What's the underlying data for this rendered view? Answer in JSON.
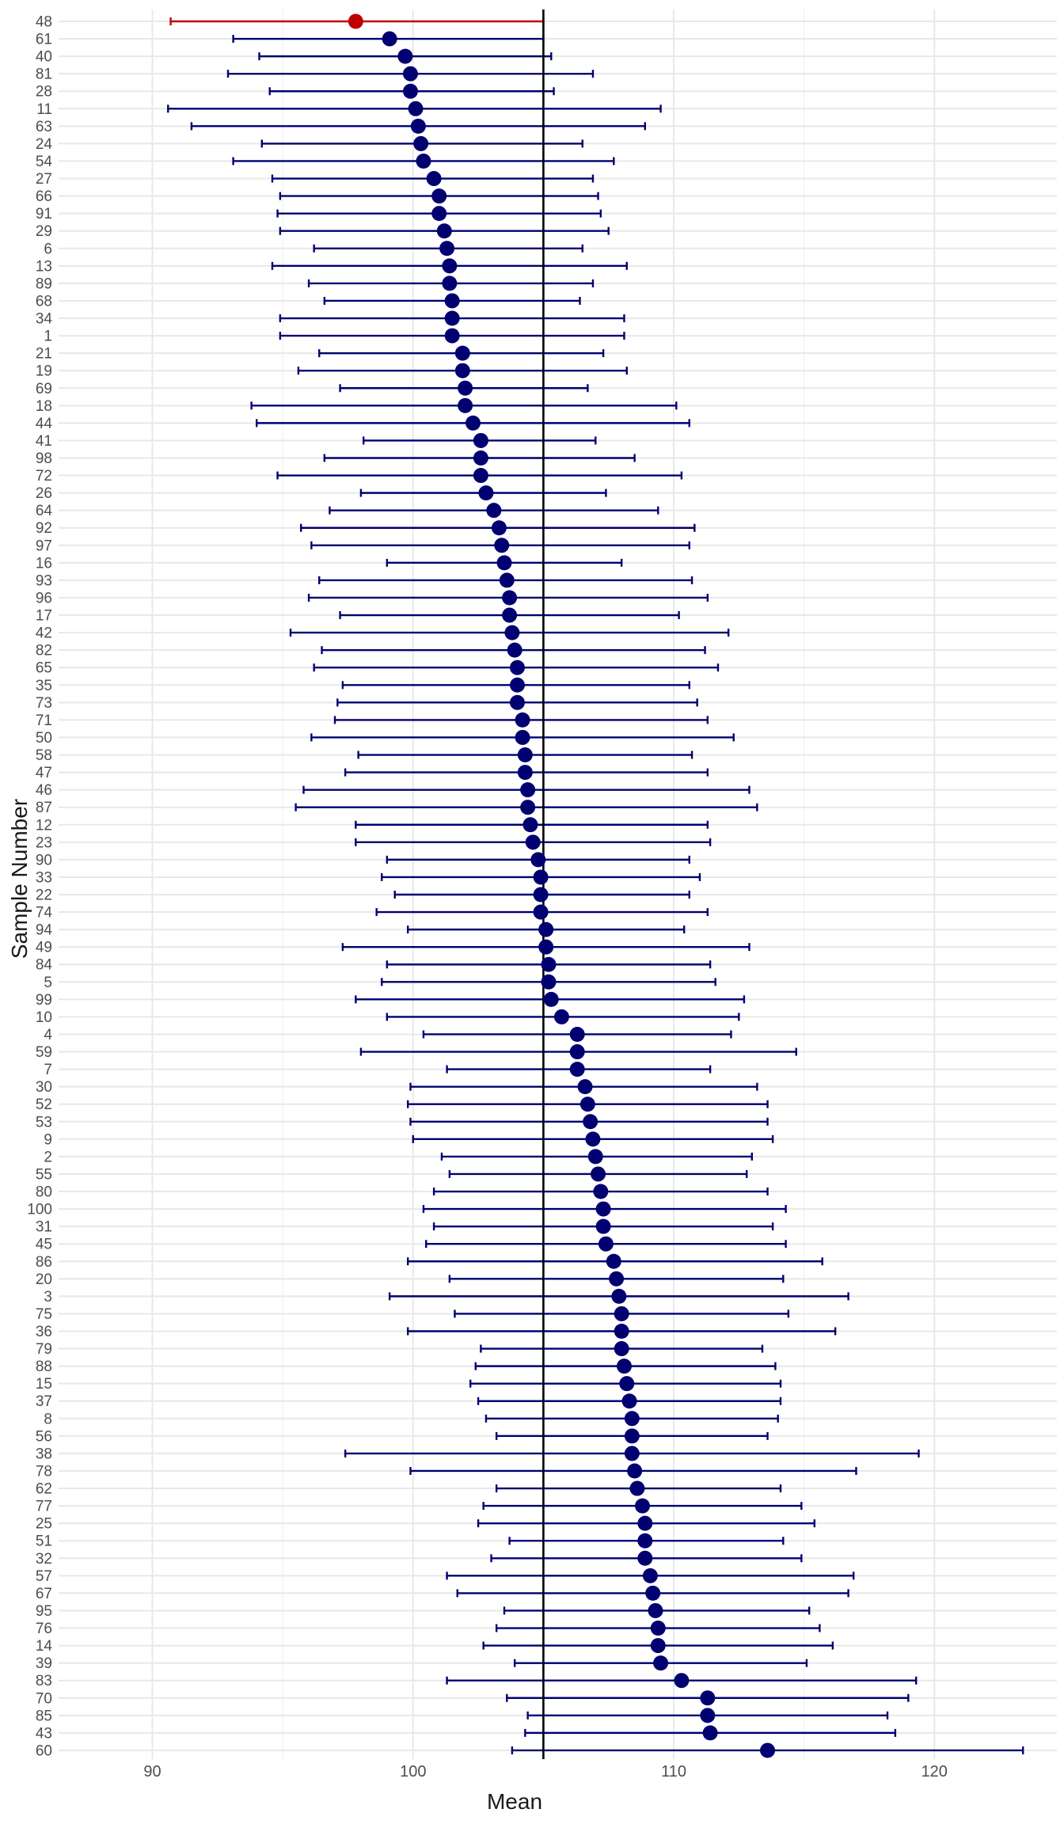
{
  "chart_data": {
    "type": "scatter",
    "subtype": "forest_plot_confidence_intervals",
    "title": "",
    "xlabel": "Mean",
    "ylabel": "Sample Number",
    "xlim": [
      86.4,
      124.7
    ],
    "x_ticks": [
      90,
      100,
      110,
      120
    ],
    "reference_line": 105,
    "grid": true,
    "colors": {
      "contains_true_mean": "#000070",
      "misses_true_mean": "#C00000",
      "reference_line": "#000000",
      "grid": "#E8E8E8"
    },
    "samples": [
      {
        "id": "48",
        "mean": 97.8,
        "lower": 90.7,
        "upper": 105.0,
        "misses": true
      },
      {
        "id": "61",
        "mean": 99.1,
        "lower": 93.1,
        "upper": 105.0
      },
      {
        "id": "40",
        "mean": 99.7,
        "lower": 94.1,
        "upper": 105.3
      },
      {
        "id": "81",
        "mean": 99.9,
        "lower": 92.9,
        "upper": 106.9
      },
      {
        "id": "28",
        "mean": 99.9,
        "lower": 94.5,
        "upper": 105.4
      },
      {
        "id": "11",
        "mean": 100.1,
        "lower": 90.6,
        "upper": 109.5
      },
      {
        "id": "63",
        "mean": 100.2,
        "lower": 91.5,
        "upper": 108.9
      },
      {
        "id": "24",
        "mean": 100.3,
        "lower": 94.2,
        "upper": 106.5
      },
      {
        "id": "54",
        "mean": 100.4,
        "lower": 93.1,
        "upper": 107.7
      },
      {
        "id": "27",
        "mean": 100.8,
        "lower": 94.6,
        "upper": 106.9
      },
      {
        "id": "66",
        "mean": 101.0,
        "lower": 94.9,
        "upper": 107.1
      },
      {
        "id": "91",
        "mean": 101.0,
        "lower": 94.8,
        "upper": 107.2
      },
      {
        "id": "29",
        "mean": 101.2,
        "lower": 94.9,
        "upper": 107.5
      },
      {
        "id": "6",
        "mean": 101.3,
        "lower": 96.2,
        "upper": 106.5
      },
      {
        "id": "13",
        "mean": 101.4,
        "lower": 94.6,
        "upper": 108.2
      },
      {
        "id": "89",
        "mean": 101.4,
        "lower": 96.0,
        "upper": 106.9
      },
      {
        "id": "68",
        "mean": 101.5,
        "lower": 96.6,
        "upper": 106.4
      },
      {
        "id": "34",
        "mean": 101.5,
        "lower": 94.9,
        "upper": 108.1
      },
      {
        "id": "1",
        "mean": 101.5,
        "lower": 94.9,
        "upper": 108.1
      },
      {
        "id": "21",
        "mean": 101.9,
        "lower": 96.4,
        "upper": 107.3
      },
      {
        "id": "19",
        "mean": 101.9,
        "lower": 95.6,
        "upper": 108.2
      },
      {
        "id": "69",
        "mean": 102.0,
        "lower": 97.2,
        "upper": 106.7
      },
      {
        "id": "18",
        "mean": 102.0,
        "lower": 93.8,
        "upper": 110.1
      },
      {
        "id": "44",
        "mean": 102.3,
        "lower": 94.0,
        "upper": 110.6
      },
      {
        "id": "41",
        "mean": 102.6,
        "lower": 98.1,
        "upper": 107.0
      },
      {
        "id": "98",
        "mean": 102.6,
        "lower": 96.6,
        "upper": 108.5
      },
      {
        "id": "72",
        "mean": 102.6,
        "lower": 94.8,
        "upper": 110.3
      },
      {
        "id": "26",
        "mean": 102.8,
        "lower": 98.0,
        "upper": 107.4
      },
      {
        "id": "64",
        "mean": 103.1,
        "lower": 96.8,
        "upper": 109.4
      },
      {
        "id": "92",
        "mean": 103.3,
        "lower": 95.7,
        "upper": 110.8
      },
      {
        "id": "97",
        "mean": 103.4,
        "lower": 96.1,
        "upper": 110.6
      },
      {
        "id": "16",
        "mean": 103.5,
        "lower": 99.0,
        "upper": 108.0
      },
      {
        "id": "93",
        "mean": 103.6,
        "lower": 96.4,
        "upper": 110.7
      },
      {
        "id": "96",
        "mean": 103.7,
        "lower": 96.0,
        "upper": 111.3
      },
      {
        "id": "17",
        "mean": 103.7,
        "lower": 97.2,
        "upper": 110.2
      },
      {
        "id": "42",
        "mean": 103.8,
        "lower": 95.3,
        "upper": 112.1
      },
      {
        "id": "82",
        "mean": 103.9,
        "lower": 96.5,
        "upper": 111.2
      },
      {
        "id": "65",
        "mean": 104.0,
        "lower": 96.2,
        "upper": 111.7
      },
      {
        "id": "35",
        "mean": 104.0,
        "lower": 97.3,
        "upper": 110.6
      },
      {
        "id": "73",
        "mean": 104.0,
        "lower": 97.1,
        "upper": 110.9
      },
      {
        "id": "71",
        "mean": 104.2,
        "lower": 97.0,
        "upper": 111.3
      },
      {
        "id": "50",
        "mean": 104.2,
        "lower": 96.1,
        "upper": 112.3
      },
      {
        "id": "58",
        "mean": 104.3,
        "lower": 97.9,
        "upper": 110.7
      },
      {
        "id": "47",
        "mean": 104.3,
        "lower": 97.4,
        "upper": 111.3
      },
      {
        "id": "46",
        "mean": 104.4,
        "lower": 95.8,
        "upper": 112.9
      },
      {
        "id": "87",
        "mean": 104.4,
        "lower": 95.5,
        "upper": 113.2
      },
      {
        "id": "12",
        "mean": 104.5,
        "lower": 97.8,
        "upper": 111.3
      },
      {
        "id": "23",
        "mean": 104.6,
        "lower": 97.8,
        "upper": 111.4
      },
      {
        "id": "90",
        "mean": 104.8,
        "lower": 99.0,
        "upper": 110.6
      },
      {
        "id": "33",
        "mean": 104.9,
        "lower": 98.8,
        "upper": 111.0
      },
      {
        "id": "22",
        "mean": 104.9,
        "lower": 99.3,
        "upper": 110.6
      },
      {
        "id": "74",
        "mean": 104.9,
        "lower": 98.6,
        "upper": 111.3
      },
      {
        "id": "94",
        "mean": 105.1,
        "lower": 99.8,
        "upper": 110.4
      },
      {
        "id": "49",
        "mean": 105.1,
        "lower": 97.3,
        "upper": 112.9
      },
      {
        "id": "84",
        "mean": 105.2,
        "lower": 99.0,
        "upper": 111.4
      },
      {
        "id": "5",
        "mean": 105.2,
        "lower": 98.8,
        "upper": 111.6
      },
      {
        "id": "99",
        "mean": 105.3,
        "lower": 97.8,
        "upper": 112.7
      },
      {
        "id": "10",
        "mean": 105.7,
        "lower": 99.0,
        "upper": 112.5
      },
      {
        "id": "4",
        "mean": 106.3,
        "lower": 100.4,
        "upper": 112.2
      },
      {
        "id": "59",
        "mean": 106.3,
        "lower": 98.0,
        "upper": 114.7
      },
      {
        "id": "7",
        "mean": 106.3,
        "lower": 101.3,
        "upper": 111.4
      },
      {
        "id": "30",
        "mean": 106.6,
        "lower": 99.9,
        "upper": 113.2
      },
      {
        "id": "52",
        "mean": 106.7,
        "lower": 99.8,
        "upper": 113.6
      },
      {
        "id": "53",
        "mean": 106.8,
        "lower": 99.9,
        "upper": 113.6
      },
      {
        "id": "9",
        "mean": 106.9,
        "lower": 100.0,
        "upper": 113.8
      },
      {
        "id": "2",
        "mean": 107.0,
        "lower": 101.1,
        "upper": 113.0
      },
      {
        "id": "55",
        "mean": 107.1,
        "lower": 101.4,
        "upper": 112.8
      },
      {
        "id": "80",
        "mean": 107.2,
        "lower": 100.8,
        "upper": 113.6
      },
      {
        "id": "100",
        "mean": 107.3,
        "lower": 100.4,
        "upper": 114.3
      },
      {
        "id": "31",
        "mean": 107.3,
        "lower": 100.8,
        "upper": 113.8
      },
      {
        "id": "45",
        "mean": 107.4,
        "lower": 100.5,
        "upper": 114.3
      },
      {
        "id": "86",
        "mean": 107.7,
        "lower": 99.8,
        "upper": 115.7
      },
      {
        "id": "20",
        "mean": 107.8,
        "lower": 101.4,
        "upper": 114.2
      },
      {
        "id": "3",
        "mean": 107.9,
        "lower": 99.1,
        "upper": 116.7
      },
      {
        "id": "75",
        "mean": 108.0,
        "lower": 101.6,
        "upper": 114.4
      },
      {
        "id": "36",
        "mean": 108.0,
        "lower": 99.8,
        "upper": 116.2
      },
      {
        "id": "79",
        "mean": 108.0,
        "lower": 102.6,
        "upper": 113.4
      },
      {
        "id": "88",
        "mean": 108.1,
        "lower": 102.4,
        "upper": 113.9
      },
      {
        "id": "15",
        "mean": 108.2,
        "lower": 102.2,
        "upper": 114.1
      },
      {
        "id": "37",
        "mean": 108.3,
        "lower": 102.5,
        "upper": 114.1
      },
      {
        "id": "8",
        "mean": 108.4,
        "lower": 102.8,
        "upper": 114.0
      },
      {
        "id": "56",
        "mean": 108.4,
        "lower": 103.2,
        "upper": 113.6
      },
      {
        "id": "38",
        "mean": 108.4,
        "lower": 97.4,
        "upper": 119.4
      },
      {
        "id": "78",
        "mean": 108.5,
        "lower": 99.9,
        "upper": 117.0
      },
      {
        "id": "62",
        "mean": 108.6,
        "lower": 103.2,
        "upper": 114.1
      },
      {
        "id": "77",
        "mean": 108.8,
        "lower": 102.7,
        "upper": 114.9
      },
      {
        "id": "25",
        "mean": 108.9,
        "lower": 102.5,
        "upper": 115.4
      },
      {
        "id": "51",
        "mean": 108.9,
        "lower": 103.7,
        "upper": 114.2
      },
      {
        "id": "32",
        "mean": 108.9,
        "lower": 103.0,
        "upper": 114.9
      },
      {
        "id": "57",
        "mean": 109.1,
        "lower": 101.3,
        "upper": 116.9
      },
      {
        "id": "67",
        "mean": 109.2,
        "lower": 101.7,
        "upper": 116.7
      },
      {
        "id": "95",
        "mean": 109.3,
        "lower": 103.5,
        "upper": 115.2
      },
      {
        "id": "76",
        "mean": 109.4,
        "lower": 103.2,
        "upper": 115.6
      },
      {
        "id": "14",
        "mean": 109.4,
        "lower": 102.7,
        "upper": 116.1
      },
      {
        "id": "39",
        "mean": 109.5,
        "lower": 103.9,
        "upper": 115.1
      },
      {
        "id": "83",
        "mean": 110.3,
        "lower": 101.3,
        "upper": 119.3
      },
      {
        "id": "70",
        "mean": 111.3,
        "lower": 103.6,
        "upper": 119.0
      },
      {
        "id": "85",
        "mean": 111.3,
        "lower": 104.4,
        "upper": 118.2
      },
      {
        "id": "43",
        "mean": 111.4,
        "lower": 104.3,
        "upper": 118.5
      },
      {
        "id": "60",
        "mean": 113.6,
        "lower": 103.8,
        "upper": 123.4
      }
    ]
  }
}
